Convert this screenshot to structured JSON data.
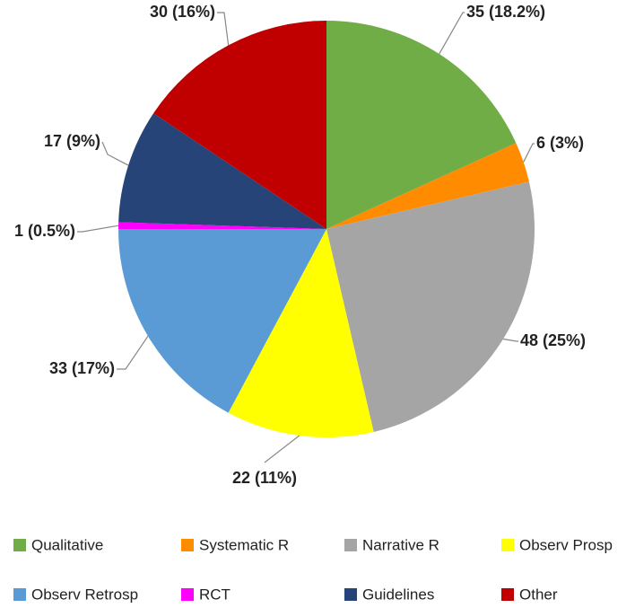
{
  "chart_data": {
    "type": "pie",
    "categories": [
      "Qualitative",
      "Systematic R",
      "Narrative R",
      "Observ Prosp",
      "Observ Retrosp",
      "RCT",
      "Guidelines",
      "Other"
    ],
    "values": [
      35,
      6,
      48,
      22,
      33,
      1,
      17,
      30
    ],
    "value_labels": [
      "35 (18.2%)",
      "6 (3%)",
      "48 (25%)",
      "22 (11%)",
      "33 (17%)",
      "1 (0.5%)",
      "17 (9%)",
      "30 (16%)"
    ],
    "colors": [
      "#70ad47",
      "#ff8c00",
      "#a5a5a5",
      "#ffff00",
      "#5b9bd5",
      "#ff00ff",
      "#264478",
      "#c00000"
    ],
    "legend": "bottom"
  }
}
